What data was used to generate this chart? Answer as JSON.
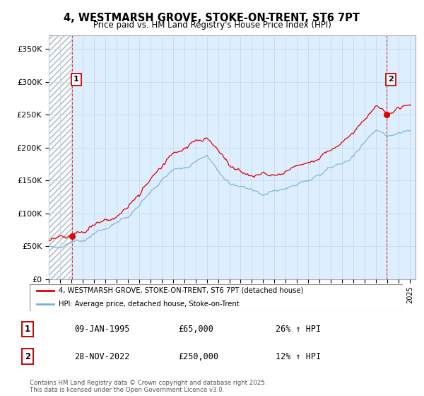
{
  "title": "4, WESTMARSH GROVE, STOKE-ON-TRENT, ST6 7PT",
  "subtitle": "Price paid vs. HM Land Registry's House Price Index (HPI)",
  "ylim": [
    0,
    370000
  ],
  "yticks": [
    0,
    50000,
    100000,
    150000,
    200000,
    250000,
    300000,
    350000
  ],
  "ytick_labels": [
    "£0",
    "£50K",
    "£100K",
    "£150K",
    "£200K",
    "£250K",
    "£300K",
    "£350K"
  ],
  "xlim_start": 1993.0,
  "xlim_end": 2025.5,
  "sale1_x": 1995.04,
  "sale1_y": 65000,
  "sale2_x": 2022.91,
  "sale2_y": 250000,
  "sale1_label": "1",
  "sale2_label": "2",
  "line1_color": "#dd0000",
  "line2_color": "#7ab0d8",
  "grid_color": "#c8d8e8",
  "bg_color": "#ddeeff",
  "legend_line1": "4, WESTMARSH GROVE, STOKE-ON-TRENT, ST6 7PT (detached house)",
  "legend_line2": "HPI: Average price, detached house, Stoke-on-Trent",
  "footer1": "Contains HM Land Registry data © Crown copyright and database right 2025.",
  "footer2": "This data is licensed under the Open Government Licence v3.0.",
  "table_row1": [
    "1",
    "09-JAN-1995",
    "£65,000",
    "26% ↑ HPI"
  ],
  "table_row2": [
    "2",
    "28-NOV-2022",
    "£250,000",
    "12% ↑ HPI"
  ]
}
